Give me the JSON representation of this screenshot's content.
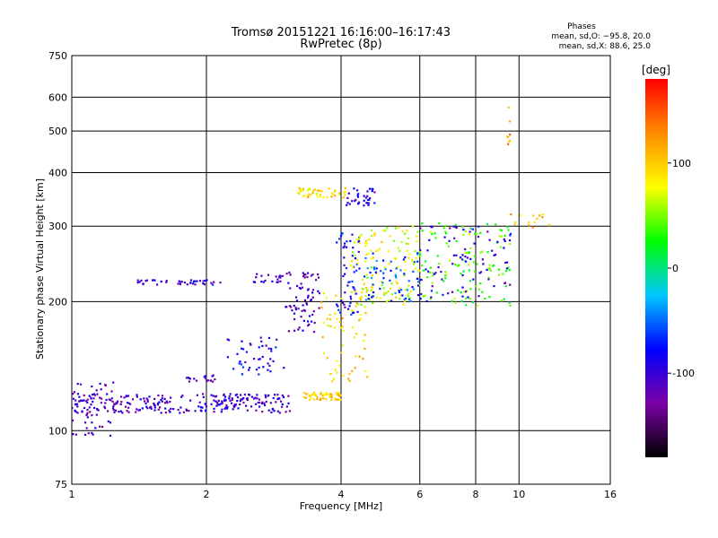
{
  "chart_data": {
    "type": "scatter",
    "title": "Tromsø 20151221 16:16:00–16:17:43",
    "subtitle": "RwPretec (8p)",
    "xlabel": "Frequency [MHz]",
    "ylabel": "Stationary phase Virtual Height [km]",
    "x_scale": "log",
    "y_scale": "log",
    "xlim": [
      1,
      16
    ],
    "ylim": [
      75,
      750
    ],
    "x_ticks": [
      1,
      2,
      4,
      6,
      8,
      10,
      16
    ],
    "y_ticks": [
      75,
      100,
      200,
      300,
      400,
      500,
      600,
      750
    ],
    "x_grid": [
      2,
      4,
      6,
      8,
      10
    ],
    "y_grid": [
      100,
      200,
      300,
      400,
      500,
      600
    ],
    "phases_header": "Phases",
    "phases_lines": [
      "mean, sd,O: −95.8, 20.0",
      "mean, sd,X:  88.6, 25.0"
    ],
    "colorbar": {
      "label": "[deg]",
      "range": [
        -180,
        180
      ],
      "ticks": [
        -100,
        0,
        100
      ],
      "colormap": [
        "#000000",
        "#7b00a5",
        "#0000ff",
        "#00c8ff",
        "#00ff00",
        "#ffff00",
        "#ff8c00",
        "#ff0000"
      ]
    },
    "point_groups": [
      {
        "x_range": [
          1.0,
          3.1
        ],
        "y_range": [
          110,
          122
        ],
        "phase": -105,
        "count": 260
      },
      {
        "x_range": [
          1.0,
          1.25
        ],
        "y_range": [
          97,
          130
        ],
        "phase": -110,
        "count": 45
      },
      {
        "x_range": [
          1.4,
          2.2
        ],
        "y_range": [
          219,
          225
        ],
        "phase": -100,
        "count": 40
      },
      {
        "x_range": [
          2.5,
          3.0
        ],
        "y_range": [
          222,
          232
        ],
        "phase": -95,
        "count": 20
      },
      {
        "x_range": [
          1.8,
          2.1
        ],
        "y_range": [
          130,
          135
        ],
        "phase": -110,
        "count": 18
      },
      {
        "x_range": [
          2.2,
          3.0
        ],
        "y_range": [
          135,
          165
        ],
        "phase": -90,
        "count": 45
      },
      {
        "x_range": [
          3.0,
          3.6
        ],
        "y_range": [
          170,
          235
        ],
        "phase": -110,
        "count": 70
      },
      {
        "x_range": [
          3.2,
          4.1
        ],
        "y_range": [
          350,
          368
        ],
        "phase": 90,
        "count": 45
      },
      {
        "x_range": [
          4.0,
          4.8
        ],
        "y_range": [
          335,
          368
        ],
        "phase": -95,
        "count": 35
      },
      {
        "x_range": [
          3.3,
          4.0
        ],
        "y_range": [
          118,
          123
        ],
        "phase": 100,
        "count": 55
      },
      {
        "x_range": [
          3.6,
          4.6
        ],
        "y_range": [
          130,
          210
        ],
        "phase": 95,
        "count": 60
      },
      {
        "x_range": [
          3.9,
          4.4
        ],
        "y_range": [
          185,
          290
        ],
        "phase": -85,
        "count": 55
      },
      {
        "x_range": [
          4.2,
          6.0
        ],
        "y_range": [
          195,
          300
        ],
        "phase": 75,
        "count": 130
      },
      {
        "x_range": [
          4.5,
          6.0
        ],
        "y_range": [
          200,
          260
        ],
        "phase": -60,
        "count": 60
      },
      {
        "x_range": [
          6.0,
          9.6
        ],
        "y_range": [
          195,
          305
        ],
        "phase": 40,
        "count": 120
      },
      {
        "x_range": [
          6.0,
          9.6
        ],
        "y_range": [
          200,
          300
        ],
        "phase": -95,
        "count": 80
      },
      {
        "x_range": [
          9.4,
          12.0
        ],
        "y_range": [
          295,
          320
        ],
        "phase": 110,
        "count": 14
      },
      {
        "x_range": [
          9.4,
          9.6
        ],
        "y_range": [
          440,
          610
        ],
        "phase": 120,
        "count": 8
      }
    ]
  }
}
